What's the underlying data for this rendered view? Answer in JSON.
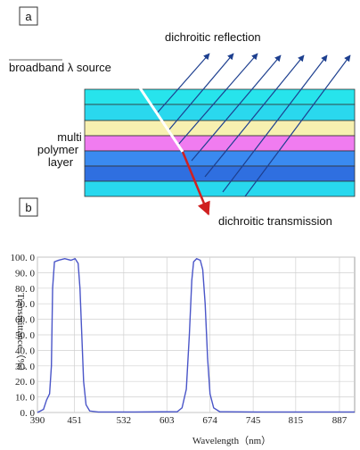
{
  "panel_a": {
    "label": "a",
    "reflection": "dichroitic reflection",
    "source": "broadband λ source",
    "layer_label": [
      "multi",
      "polymer",
      "layer"
    ],
    "transmission": "dichroitic transmission"
  },
  "panel_b_label": "b",
  "chart_data": {
    "type": "line",
    "xlabel": "Wavelength（nm）",
    "ylabel": "Transmittance（%）",
    "color": "#4a55c8",
    "grid": true,
    "x": [
      390,
      400,
      405,
      410,
      413,
      415,
      418,
      425,
      435,
      445,
      452,
      457,
      460,
      463,
      466,
      470,
      476,
      490,
      550,
      620,
      628,
      635,
      640,
      644,
      647,
      652,
      658,
      662,
      666,
      670,
      674,
      680,
      690,
      750,
      850,
      912
    ],
    "values": [
      0,
      2,
      8,
      12,
      30,
      80,
      97,
      98,
      99,
      98,
      99,
      96,
      80,
      50,
      20,
      5,
      1,
      0.3,
      0.3,
      0.5,
      3,
      15,
      50,
      85,
      97,
      99,
      98,
      92,
      70,
      35,
      12,
      3,
      0.5,
      0.3,
      0.3,
      0.3
    ],
    "xlim": [
      390,
      912
    ],
    "ylim": [
      0,
      100
    ],
    "xticks": [
      390,
      451,
      532,
      603,
      674,
      745,
      815,
      887
    ],
    "yticks": [
      {
        "value": 0,
        "label": "0. 0"
      },
      {
        "value": 10,
        "label": "10. 0"
      },
      {
        "value": 20,
        "label": "20. 0"
      },
      {
        "value": 30,
        "label": "30. 0"
      },
      {
        "value": 40,
        "label": "40. 0"
      },
      {
        "value": 50,
        "label": "50. 0"
      },
      {
        "value": 60,
        "label": "60. 0"
      },
      {
        "value": 70,
        "label": "70. 0"
      },
      {
        "value": 80,
        "label": "80. 0"
      },
      {
        "value": 90,
        "label": "90. 0"
      },
      {
        "value": 100,
        "label": "100. 0"
      }
    ]
  }
}
